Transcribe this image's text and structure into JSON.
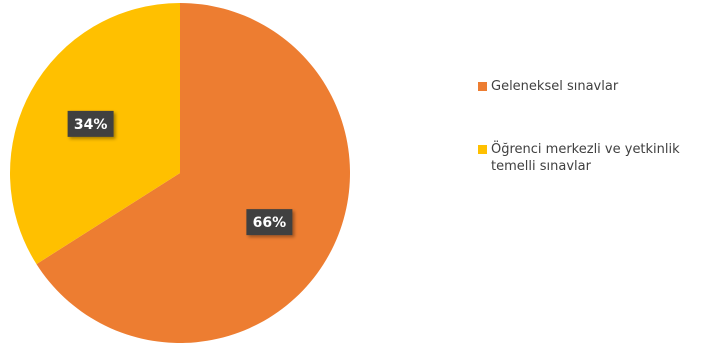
{
  "chart_data": {
    "type": "pie",
    "title": "",
    "slices": [
      {
        "label": "Geleneksel sınavlar",
        "value": 66,
        "data_label": "66%",
        "color": "#ED7D31"
      },
      {
        "label": "Öğrenci merkezli ve yetkinlik temelli sınavlar",
        "value": 34,
        "data_label": "34%",
        "color": "#FFC000"
      }
    ],
    "start_angle_deg": 0,
    "direction": "clockwise",
    "legend_position": "right",
    "data_label_style": {
      "background": "#404040",
      "text_color": "#FFFFFF"
    }
  }
}
